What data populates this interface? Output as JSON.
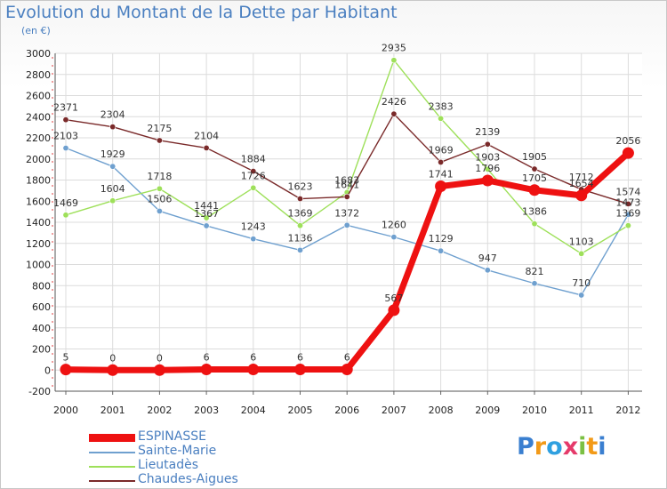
{
  "chart_data": {
    "type": "line",
    "title": "Evolution du Montant de la Dette par Habitant",
    "subtitle": "(en €)",
    "xlabel": "",
    "ylabel": "",
    "x": [
      "2000",
      "2001",
      "2002",
      "2003",
      "2004",
      "2005",
      "2006",
      "2007",
      "2008",
      "2009",
      "2010",
      "2011",
      "2012"
    ],
    "ylim": [
      -200,
      3000
    ],
    "yticks": [
      -200,
      0,
      200,
      400,
      600,
      800,
      1000,
      1200,
      1400,
      1600,
      1800,
      2000,
      2200,
      2400,
      2600,
      2800,
      3000
    ],
    "grid": true,
    "legend_position": "bottom-left",
    "series": [
      {
        "name": "ESPINASSE",
        "color": "#ee1111",
        "values": [
          5,
          0,
          0,
          6,
          6,
          6,
          6,
          567,
          1741,
          1796,
          1705,
          1654,
          2056
        ],
        "labels": [
          "5",
          "0",
          "0",
          "6",
          "6",
          "6",
          "6",
          "567",
          "1741",
          "1796",
          "1705",
          "1654",
          "2056"
        ]
      },
      {
        "name": "Sainte-Marie",
        "color": "#6fa0cf",
        "values": [
          2103,
          1929,
          1506,
          1367,
          1243,
          1136,
          1372,
          1260,
          1129,
          947,
          821,
          710,
          1473
        ],
        "labels": [
          "2103",
          "1929",
          "1506",
          "1367",
          "1243",
          "1136",
          "1372",
          "1260",
          "1129",
          "947",
          "821",
          "710",
          "1473"
        ]
      },
      {
        "name": "Lieutadès",
        "color": "#9ee05a",
        "values": [
          1469,
          1604,
          1718,
          1441,
          1726,
          1369,
          1683,
          2935,
          2383,
          1903,
          1386,
          1103,
          1369
        ],
        "labels": [
          "1469",
          "1604",
          "1718",
          "1441",
          "1726",
          "1369",
          "1683",
          "2935",
          "2383",
          "1903",
          "1386",
          "1103",
          "1369"
        ]
      },
      {
        "name": "Chaudes-Aigues",
        "color": "#7a2a2a",
        "values": [
          2371,
          2304,
          2175,
          2104,
          1884,
          1623,
          1641,
          2426,
          1969,
          2139,
          1905,
          1712,
          1574
        ],
        "labels": [
          "2371",
          "2304",
          "2175",
          "2104",
          "1884",
          "1623",
          "1641",
          "2426",
          "1969",
          "2139",
          "1905",
          "1712",
          "1574"
        ]
      }
    ]
  },
  "logo": {
    "letters": [
      "P",
      "r",
      "o",
      "x",
      "i",
      "t",
      "i"
    ],
    "colors": [
      "#3a7fd0",
      "#f29a18",
      "#2fa0e0",
      "#e53a6a",
      "#7bc043",
      "#f29a18",
      "#3a7fd0"
    ]
  }
}
